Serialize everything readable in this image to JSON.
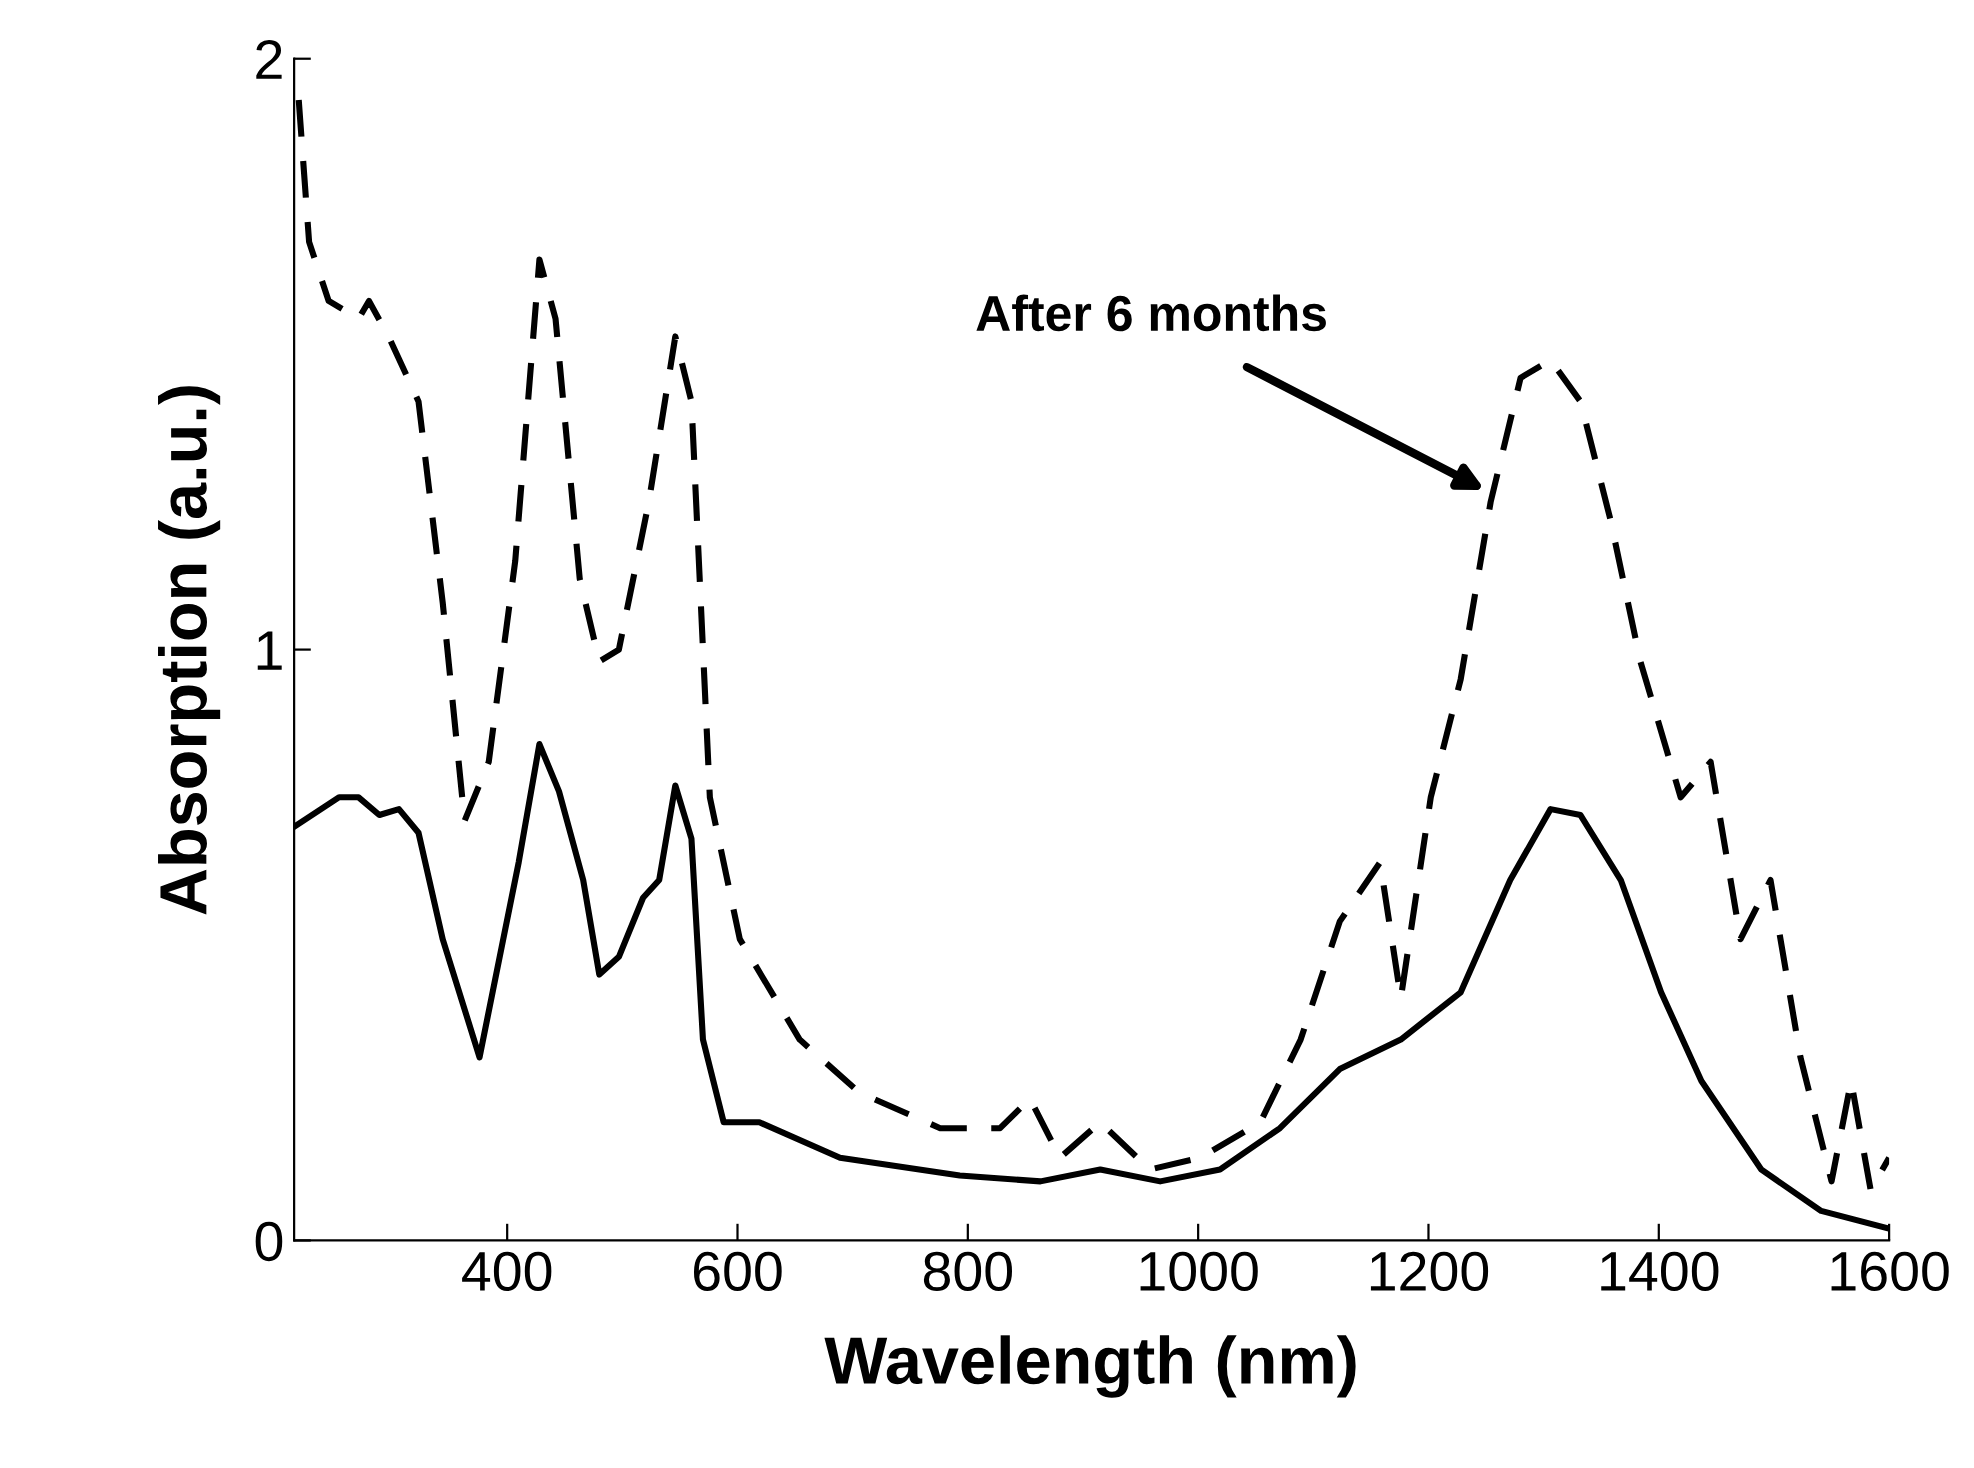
{
  "chart_data": {
    "type": "line",
    "xlabel": "Wavelength (nm)",
    "ylabel": "Absorption (a.u.)",
    "xlim": [
      215,
      1600
    ],
    "ylim": [
      0,
      2
    ],
    "xticks": [
      400,
      600,
      800,
      1000,
      1200,
      1400,
      1600
    ],
    "yticks": [
      0,
      1,
      2
    ],
    "grid": false,
    "legend": false,
    "marker": "none",
    "annotations": [
      {
        "text": "After 6 months",
        "x": 1249,
        "y": 1.27
      }
    ],
    "series": [
      {
        "color": "#000000",
        "line_style": "solid",
        "x": [
          215,
          254,
          271,
          289,
          306,
          323,
          344,
          376,
          410,
          428,
          445,
          466,
          480,
          497,
          518,
          532,
          546,
          560,
          570,
          588,
          619,
          689,
          793,
          863,
          915,
          967,
          1019,
          1071,
          1123,
          1176,
          1228,
          1271,
          1306,
          1332,
          1367,
          1402,
          1437,
          1489,
          1541,
          1600
        ],
        "values": [
          0.7,
          0.75,
          0.75,
          0.72,
          0.73,
          0.69,
          0.51,
          0.31,
          0.64,
          0.84,
          0.76,
          0.61,
          0.45,
          0.48,
          0.58,
          0.61,
          0.77,
          0.68,
          0.34,
          0.2,
          0.2,
          0.14,
          0.11,
          0.1,
          0.12,
          0.1,
          0.12,
          0.19,
          0.29,
          0.34,
          0.42,
          0.61,
          0.73,
          0.72,
          0.61,
          0.42,
          0.27,
          0.12,
          0.05,
          0.02
        ]
      },
      {
        "color": "#000000",
        "line_style": "dashed",
        "x": [
          219,
          228,
          245,
          271,
          280,
          297,
          323,
          344,
          363,
          384,
          407,
          428,
          442,
          463,
          480,
          497,
          523,
          546,
          560,
          576,
          602,
          654,
          706,
          776,
          828,
          854,
          880,
          915,
          958,
          1002,
          1054,
          1089,
          1123,
          1158,
          1176,
          1202,
          1228,
          1254,
          1280,
          1306,
          1332,
          1358,
          1384,
          1419,
          1445,
          1471,
          1497,
          1523,
          1550,
          1567,
          1584,
          1600
        ],
        "values": [
          1.93,
          1.69,
          1.59,
          1.56,
          1.59,
          1.53,
          1.42,
          1.08,
          0.71,
          0.81,
          1.15,
          1.66,
          1.56,
          1.12,
          0.98,
          1.0,
          1.25,
          1.53,
          1.42,
          0.75,
          0.51,
          0.34,
          0.25,
          0.19,
          0.19,
          0.24,
          0.14,
          0.2,
          0.12,
          0.14,
          0.2,
          0.34,
          0.54,
          0.64,
          0.41,
          0.75,
          0.95,
          1.25,
          1.46,
          1.49,
          1.42,
          1.22,
          0.98,
          0.75,
          0.81,
          0.51,
          0.61,
          0.31,
          0.1,
          0.27,
          0.085,
          0.14
        ]
      }
    ]
  }
}
